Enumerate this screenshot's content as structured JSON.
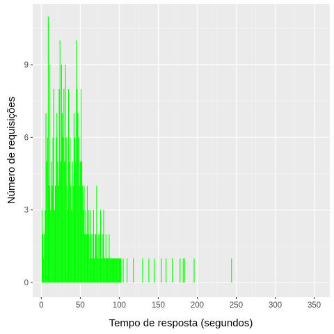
{
  "chart_data": {
    "type": "bar",
    "title": "",
    "xlabel": "Tempo de resposta (segundos)",
    "ylabel": "Número de requisições",
    "xlim": [
      -11,
      370
    ],
    "ylim": [
      -0.6,
      11.5
    ],
    "x_ticks": [
      0,
      50,
      100,
      150,
      200,
      250,
      300,
      350
    ],
    "y_ticks": [
      0,
      3,
      6,
      9
    ],
    "grid": true,
    "legend": "none",
    "bar_color": "#00ff00",
    "panel_color": "#ebebeb",
    "x": [
      1,
      2,
      3,
      4,
      5,
      6,
      7,
      8,
      9,
      10,
      11,
      12,
      13,
      14,
      15,
      16,
      17,
      18,
      19,
      20,
      21,
      22,
      23,
      24,
      25,
      26,
      27,
      28,
      29,
      30,
      31,
      32,
      33,
      34,
      35,
      36,
      37,
      38,
      39,
      40,
      41,
      42,
      43,
      44,
      45,
      46,
      47,
      48,
      49,
      50,
      51,
      52,
      53,
      54,
      55,
      56,
      57,
      58,
      59,
      60,
      61,
      62,
      63,
      64,
      65,
      66,
      67,
      68,
      69,
      70,
      71,
      72,
      73,
      74,
      75,
      76,
      77,
      78,
      79,
      80,
      81,
      82,
      83,
      84,
      85,
      86,
      87,
      88,
      89,
      90,
      91,
      92,
      93,
      94,
      95,
      96,
      97,
      98,
      99,
      100,
      101,
      102,
      105,
      110,
      118,
      130,
      138,
      145,
      154,
      160,
      168,
      178,
      182,
      184,
      196,
      244
    ],
    "values": [
      3,
      2,
      1,
      2,
      3,
      7,
      5,
      6,
      11,
      4,
      9,
      3,
      5,
      4,
      6,
      8,
      3,
      4,
      6,
      7,
      5,
      4,
      8,
      10,
      5,
      9,
      7,
      6,
      8,
      5,
      9,
      6,
      4,
      3,
      8,
      5,
      6,
      4,
      3,
      5,
      4,
      7,
      6,
      5,
      10,
      8,
      7,
      6,
      4,
      5,
      8,
      5,
      4,
      3,
      4,
      2,
      3,
      2,
      4,
      2,
      3,
      1,
      3,
      2,
      1,
      2,
      3,
      1,
      2,
      2,
      4,
      1,
      2,
      1,
      2,
      3,
      1,
      1,
      2,
      3,
      1,
      1,
      2,
      1,
      1,
      1,
      2,
      1,
      1,
      1,
      1,
      1,
      1,
      1,
      1,
      1,
      1,
      1,
      1,
      1,
      1,
      1,
      1,
      1,
      1,
      1,
      1,
      1,
      1,
      1,
      1,
      1,
      1,
      1,
      1,
      1
    ]
  }
}
